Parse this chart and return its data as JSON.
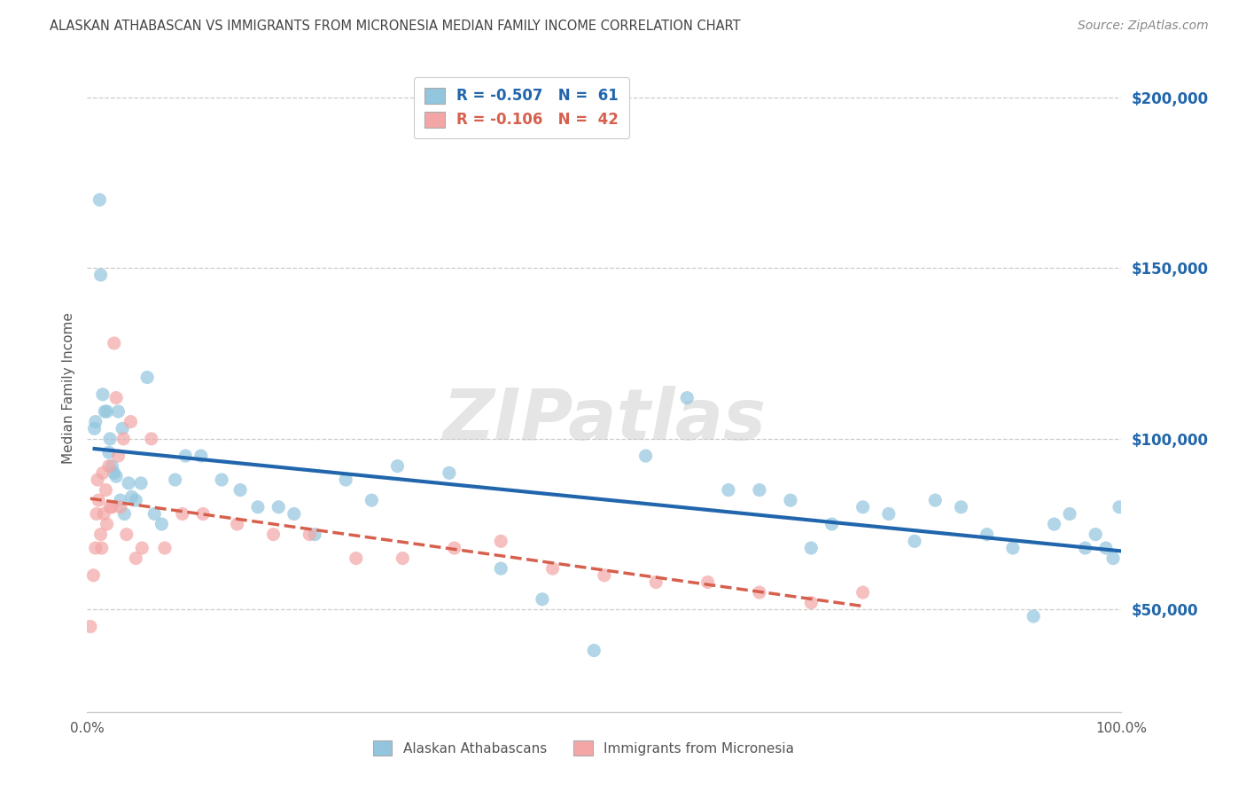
{
  "title": "ALASKAN ATHABASCAN VS IMMIGRANTS FROM MICRONESIA MEDIAN FAMILY INCOME CORRELATION CHART",
  "source": "Source: ZipAtlas.com",
  "ylabel": "Median Family Income",
  "xlim": [
    0,
    1.0
  ],
  "ylim": [
    20000,
    210000
  ],
  "yticks": [
    50000,
    100000,
    150000,
    200000
  ],
  "ytick_labels": [
    "$50,000",
    "$100,000",
    "$150,000",
    "$200,000"
  ],
  "xtick_positions": [
    0.0,
    1.0
  ],
  "xtick_labels": [
    "0.0%",
    "100.0%"
  ],
  "legend1_label": "R = -0.507   N =  61",
  "legend2_label": "R = -0.106   N =  42",
  "legend_label1": "Alaskan Athabascans",
  "legend_label2": "Immigrants from Micronesia",
  "blue_color": "#92c5de",
  "pink_color": "#f4a6a6",
  "blue_line_color": "#2166ac",
  "pink_line_color": "#d6604d",
  "background_color": "#ffffff",
  "blue_scatter_x": [
    0.007,
    0.008,
    0.012,
    0.013,
    0.015,
    0.017,
    0.019,
    0.021,
    0.022,
    0.024,
    0.026,
    0.028,
    0.03,
    0.032,
    0.034,
    0.036,
    0.04,
    0.043,
    0.047,
    0.052,
    0.058,
    0.065,
    0.072,
    0.085,
    0.095,
    0.11,
    0.13,
    0.148,
    0.165,
    0.185,
    0.2,
    0.22,
    0.25,
    0.275,
    0.3,
    0.35,
    0.4,
    0.44,
    0.49,
    0.54,
    0.58,
    0.62,
    0.65,
    0.68,
    0.7,
    0.72,
    0.75,
    0.775,
    0.8,
    0.82,
    0.845,
    0.87,
    0.895,
    0.915,
    0.935,
    0.95,
    0.965,
    0.975,
    0.985,
    0.992,
    0.998
  ],
  "blue_scatter_y": [
    103000,
    105000,
    170000,
    148000,
    113000,
    108000,
    108000,
    96000,
    100000,
    92000,
    90000,
    89000,
    108000,
    82000,
    103000,
    78000,
    87000,
    83000,
    82000,
    87000,
    118000,
    78000,
    75000,
    88000,
    95000,
    95000,
    88000,
    85000,
    80000,
    80000,
    78000,
    72000,
    88000,
    82000,
    92000,
    90000,
    62000,
    53000,
    38000,
    95000,
    112000,
    85000,
    85000,
    82000,
    68000,
    75000,
    80000,
    78000,
    70000,
    82000,
    80000,
    72000,
    68000,
    48000,
    75000,
    78000,
    68000,
    72000,
    68000,
    65000,
    80000
  ],
  "pink_scatter_x": [
    0.003,
    0.006,
    0.008,
    0.009,
    0.01,
    0.011,
    0.013,
    0.014,
    0.015,
    0.016,
    0.018,
    0.019,
    0.021,
    0.022,
    0.024,
    0.026,
    0.028,
    0.03,
    0.032,
    0.035,
    0.038,
    0.042,
    0.047,
    0.053,
    0.062,
    0.075,
    0.092,
    0.112,
    0.145,
    0.18,
    0.215,
    0.26,
    0.305,
    0.355,
    0.4,
    0.45,
    0.5,
    0.55,
    0.6,
    0.65,
    0.7,
    0.75
  ],
  "pink_scatter_y": [
    45000,
    60000,
    68000,
    78000,
    88000,
    82000,
    72000,
    68000,
    90000,
    78000,
    85000,
    75000,
    92000,
    80000,
    80000,
    128000,
    112000,
    95000,
    80000,
    100000,
    72000,
    105000,
    65000,
    68000,
    100000,
    68000,
    78000,
    78000,
    75000,
    72000,
    72000,
    65000,
    65000,
    68000,
    70000,
    62000,
    60000,
    58000,
    58000,
    55000,
    52000,
    55000
  ]
}
